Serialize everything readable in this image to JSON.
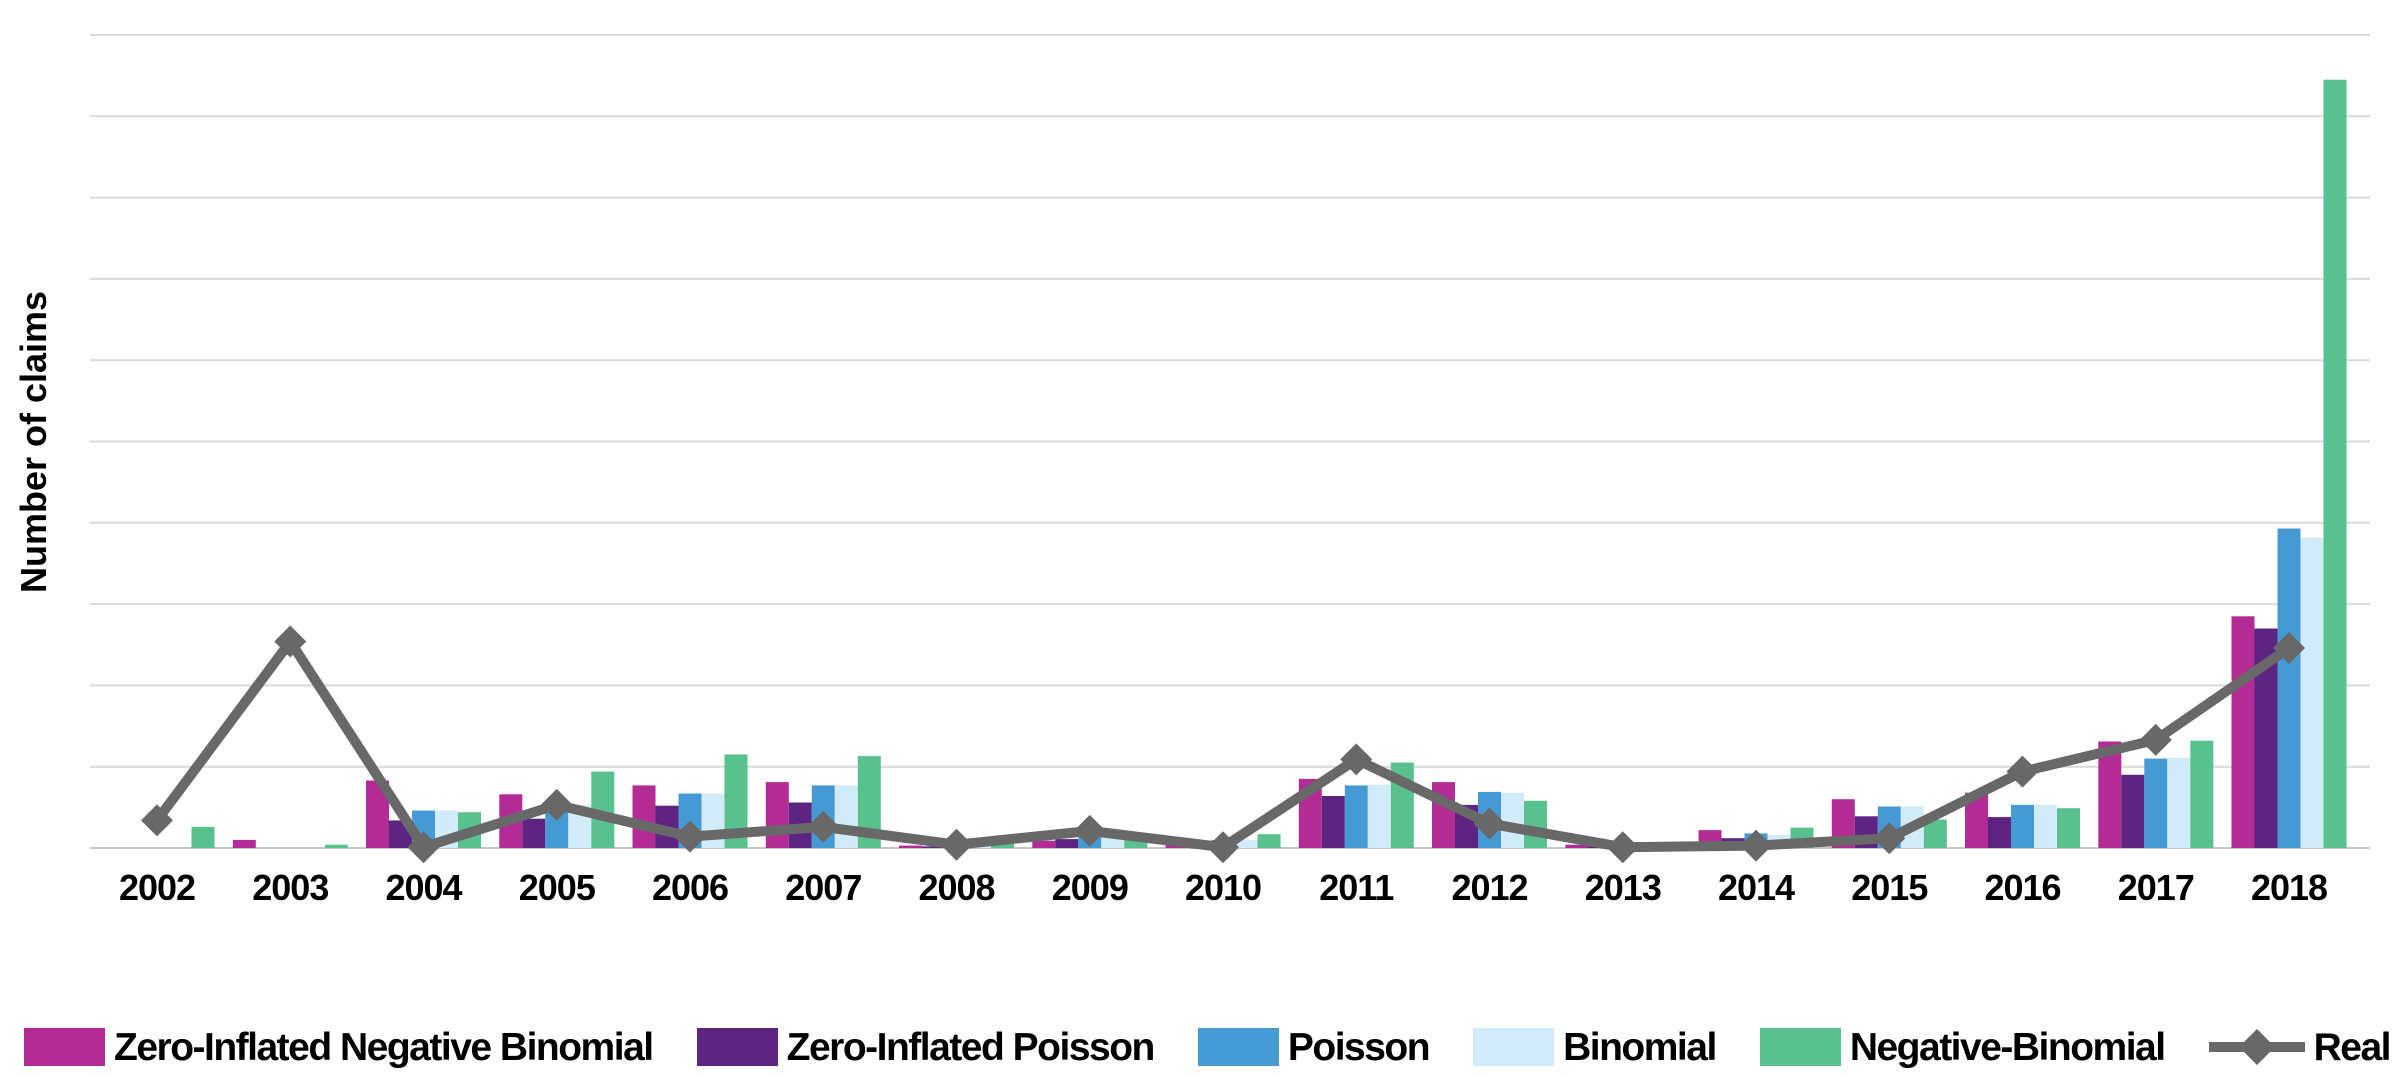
{
  "chart_data": {
    "type": "bar",
    "title": "",
    "xlabel": "",
    "ylabel": "Number of claims",
    "categories": [
      "2002",
      "2003",
      "2004",
      "2005",
      "2006",
      "2007",
      "2008",
      "2009",
      "2010",
      "2011",
      "2012",
      "2013",
      "2014",
      "2015",
      "2016",
      "2017",
      "2018"
    ],
    "series": [
      {
        "name": "Zero-Inflated Negative Binomial",
        "type": "bar",
        "color": "#b32c96",
        "values": [
          0,
          1,
          8.3,
          6.6,
          7.7,
          8.1,
          0.3,
          0.9,
          0.7,
          8.5,
          8.1,
          0.4,
          2.2,
          6,
          6.8,
          13.1,
          28.5
        ]
      },
      {
        "name": "Zero-Inflated Poisson",
        "type": "bar",
        "color": "#5e2482",
        "values": [
          0,
          0,
          3.4,
          3.6,
          5.2,
          5.6,
          0.2,
          1.1,
          0.2,
          6.4,
          5.3,
          0.3,
          1.2,
          3.9,
          3.8,
          9,
          27
        ]
      },
      {
        "name": "Poisson",
        "type": "bar",
        "color": "#459ad3",
        "values": [
          0,
          0,
          4.6,
          4.8,
          6.7,
          7.7,
          0.4,
          1.5,
          1,
          7.7,
          6.9,
          0.1,
          1.8,
          5.1,
          5.3,
          11,
          39.3
        ]
      },
      {
        "name": "Binomial",
        "type": "bar",
        "color": "#d2ebfa",
        "values": [
          0,
          0,
          4.6,
          5.3,
          6.7,
          7.7,
          0.5,
          1.3,
          1,
          7.8,
          6.8,
          0.1,
          1.6,
          5.1,
          5.3,
          11.1,
          38.2
        ]
      },
      {
        "name": "Negative-Binomial",
        "type": "bar",
        "color": "#58c18d",
        "values": [
          2.6,
          0.4,
          4.4,
          9.4,
          11.5,
          11.3,
          0.8,
          1.1,
          1.7,
          10.5,
          5.8,
          0.1,
          2.5,
          3.5,
          4.9,
          13.2,
          94.5
        ]
      },
      {
        "name": "Real",
        "type": "line",
        "marker": "diamond",
        "color": "#686868",
        "values": [
          3.4,
          25.4,
          0.1,
          5.3,
          1.4,
          2.6,
          0.4,
          2.1,
          0.1,
          10.9,
          3,
          0.1,
          0.3,
          1.2,
          9.4,
          13.3,
          24.6
        ]
      }
    ],
    "ylim": [
      0,
      100
    ],
    "y_grid_step": 10,
    "y_tick_labels": [],
    "grid": "horizontal",
    "grid_color": "#d9d9d9",
    "baseline_color": "#c6c6c6",
    "legend_position": "bottom",
    "note": "No numeric y-axis tick labels are shown in the chart; series values are estimated in units of one horizontal gridline interval (10 units per interval, 10 intervals to the top gridline)."
  }
}
